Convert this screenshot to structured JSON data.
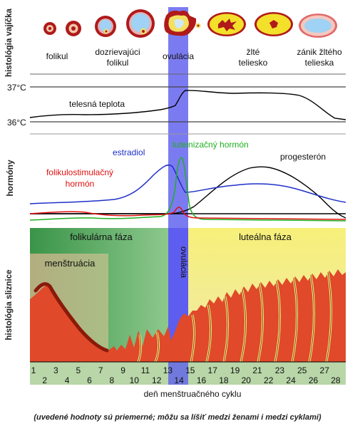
{
  "rows": {
    "ovary_histology": "histológia vajíčka",
    "hormones": "hormóny",
    "endometrium_histology": "histológia sliznice"
  },
  "stages": {
    "follicle": "folikul",
    "maturing_1": "dozrievajúci",
    "maturing_2": "folikul",
    "ovulation": "ovulácia",
    "corpus_1": "žlté",
    "corpus_2": "teliesko",
    "decline_1": "zánik žltého",
    "decline_2": "telieska"
  },
  "temperature": {
    "top_label": "37°C",
    "bottom_label": "36°C",
    "curve_label": "telesná teplota"
  },
  "hormone_labels": {
    "estradiol": "estradiol",
    "lh": "luteinizačný hormón",
    "progesterone": "progesterón",
    "fsh_1": "folikulostimulačný",
    "fsh_2": "hormón"
  },
  "phases": {
    "follicular": "folikulárna fáza",
    "ovulation": "ovulácia",
    "luteal": "luteálna fáza",
    "menstruation": "menštruácia"
  },
  "axis": {
    "odd_days": [
      "1",
      "3",
      "5",
      "7",
      "9",
      "11",
      "13",
      "15",
      "17",
      "19",
      "21",
      "23",
      "25",
      "27"
    ],
    "even_days": [
      "2",
      "4",
      "6",
      "8",
      "10",
      "12",
      "14",
      "16",
      "18",
      "20",
      "22",
      "24",
      "26",
      "28"
    ],
    "label": "deň menštruačného cyklu"
  },
  "footnote": "(uvedené hodnoty sú priemerné; môžu sa líšiť medzi ženami i medzi cyklami)",
  "colors": {
    "estradiol": "#1e2fc8",
    "lh": "#20b020",
    "fsh": "#e01010",
    "progesterone": "#000000",
    "ovulation_band": "#5a5aee",
    "follicular_bg": "#3d9a4a",
    "luteal_bg": "#f7f07a",
    "tissue": "#e0492a",
    "tissue_dark": "#8a1a0a",
    "axis_bar": "#b8d6a8"
  }
}
